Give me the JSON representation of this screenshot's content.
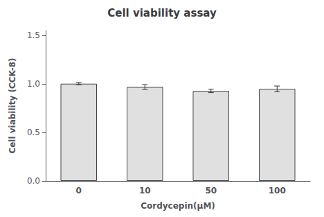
{
  "chart_data": {
    "type": "bar",
    "title": "Cell viability assay",
    "xlabel": "Cordycepin(μM)",
    "ylabel": "Cell viability (CCK-8)",
    "categories": [
      "0",
      "10",
      "50",
      "100"
    ],
    "values": [
      1.002,
      0.968,
      0.928,
      0.948
    ],
    "errors": [
      0.012,
      0.025,
      0.018,
      0.03
    ],
    "color": "#e0e0e0",
    "ylim": [
      0.0,
      1.55
    ],
    "yticks": [
      {
        "value": 0,
        "label": "0.0"
      },
      0.5,
      {
        "value": 1,
        "label": "1.0"
      },
      1.5
    ],
    "grid": false
  }
}
